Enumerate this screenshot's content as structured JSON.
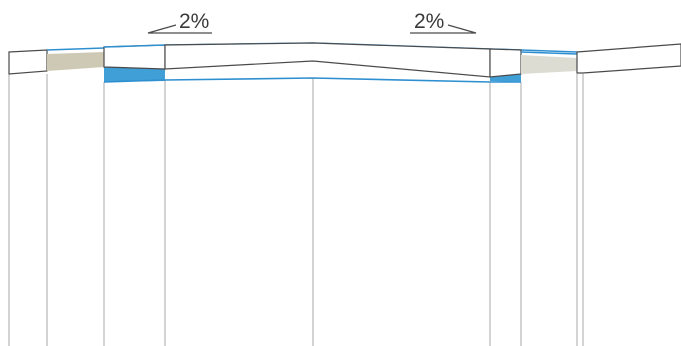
{
  "slopes": {
    "left": {
      "label": "2%",
      "direction": "left"
    },
    "right": {
      "label": "2%",
      "direction": "right"
    }
  },
  "colors": {
    "outline": "#4a4a4a",
    "pier_line": "#a8a8a8",
    "accent_blue": "#2e8fd0",
    "fill_blue": "#3f9fd6",
    "fill_blue_light": "#7cc0e4",
    "fill_beige": "#cdc9b5",
    "fill_beige_light": "#dcdcd2",
    "deck_fill": "#ffffff"
  }
}
